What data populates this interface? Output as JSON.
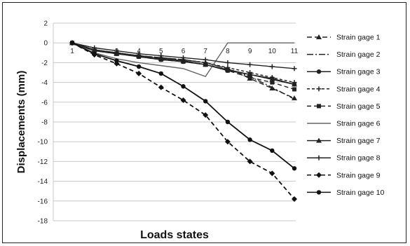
{
  "chart_data": {
    "type": "line",
    "title": "",
    "xlabel": "Loads states",
    "ylabel": "Displacements (mm)",
    "x": [
      1,
      2,
      3,
      4,
      5,
      6,
      7,
      8,
      9,
      10,
      11
    ],
    "x_tick_labels": [
      "1",
      "2",
      "3",
      "4",
      "5",
      "6",
      "7",
      "8",
      "9",
      "10",
      "11"
    ],
    "ylim": [
      -18,
      2
    ],
    "y_ticks": [
      2,
      0,
      -2,
      -4,
      -6,
      -8,
      -10,
      -12,
      -14,
      -16,
      -18
    ],
    "grid": "horizontal",
    "legend_position": "right",
    "series": [
      {
        "name": "Strain gage 1",
        "values": [
          0,
          -0.7,
          -1.1,
          -1.3,
          -1.5,
          -1.7,
          -2.0,
          -2.6,
          -3.6,
          -4.6,
          -5.6
        ]
      },
      {
        "name": "Strain gage 2",
        "values": [
          0,
          -0.7,
          -1.0,
          -1.3,
          -1.5,
          -1.7,
          -2.0,
          -2.6,
          -3.4,
          -4.5,
          -5.7
        ]
      },
      {
        "name": "Strain gage 3",
        "values": [
          0,
          -0.8,
          -1.1,
          -1.4,
          -1.7,
          -1.9,
          -2.2,
          -2.8,
          -3.2,
          -3.6,
          -4.2
        ]
      },
      {
        "name": "Strain gage 4",
        "values": [
          0,
          -0.7,
          -1.0,
          -1.3,
          -1.5,
          -1.7,
          -2.0,
          -2.5,
          -3.0,
          -3.5,
          -4.0
        ]
      },
      {
        "name": "Strain gage 5",
        "values": [
          0,
          -0.8,
          -1.1,
          -1.4,
          -1.7,
          -1.9,
          -2.2,
          -2.8,
          -3.5,
          -4.0,
          -4.7
        ]
      },
      {
        "name": "Strain gage 6",
        "values": [
          0,
          -1.0,
          -1.6,
          -2.0,
          -2.3,
          -2.6,
          -3.4,
          0.0,
          0.0,
          0.0,
          0.0
        ]
      },
      {
        "name": "Strain gage 7",
        "values": [
          0,
          -0.7,
          -1.0,
          -1.3,
          -1.6,
          -1.8,
          -2.2,
          -2.7,
          -3.2,
          -3.7,
          -4.2
        ]
      },
      {
        "name": "Strain gage 8",
        "values": [
          0,
          -0.5,
          -0.8,
          -1.1,
          -1.3,
          -1.5,
          -1.7,
          -2.0,
          -2.2,
          -2.4,
          -2.6
        ]
      },
      {
        "name": "Strain gage 9",
        "values": [
          0,
          -1.2,
          -2.1,
          -3.1,
          -4.5,
          -5.8,
          -7.3,
          -10.0,
          -12.0,
          -13.2,
          -15.8
        ]
      },
      {
        "name": "Strain gage 10",
        "values": [
          0,
          -1.1,
          -1.8,
          -2.4,
          -3.1,
          -4.4,
          -5.9,
          -8.0,
          -9.8,
          -10.9,
          -12.7
        ]
      }
    ],
    "series_styles": [
      {
        "dash": "7,4",
        "marker": "triangle",
        "color": "#222222"
      },
      {
        "dash": "9,3,2,3",
        "marker": "none",
        "color": "#222222"
      },
      {
        "dash": "",
        "marker": "circle",
        "color": "#222222"
      },
      {
        "dash": "4,3",
        "marker": "plus",
        "color": "#222222"
      },
      {
        "dash": "6,4",
        "marker": "square",
        "color": "#222222"
      },
      {
        "dash": "",
        "marker": "none",
        "color": "#666666"
      },
      {
        "dash": "",
        "marker": "triangle",
        "color": "#222222"
      },
      {
        "dash": "",
        "marker": "plus",
        "color": "#222222"
      },
      {
        "dash": "6,4",
        "marker": "diamond",
        "color": "#111111"
      },
      {
        "dash": "",
        "marker": "circle",
        "color": "#111111"
      }
    ]
  }
}
